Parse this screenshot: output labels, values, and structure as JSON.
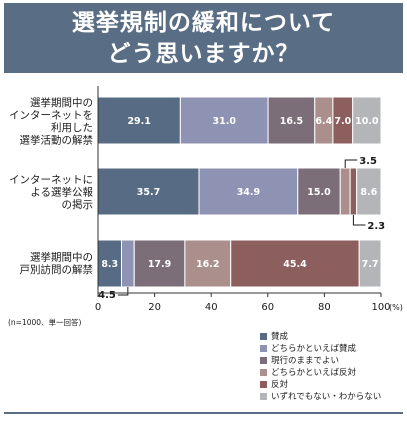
{
  "title_lines": [
    "選挙規制の緩和について",
    "どう思いますか？"
  ],
  "note": "(n=1000、単一回答)",
  "chart_data": {
    "type": "bar",
    "orientation": "horizontal",
    "stacked": true,
    "categories": [
      [
        "選挙期間中の",
        "インターネットを",
        "利用した",
        "選挙活動の解禁"
      ],
      [
        "インターネットに",
        "よる選挙公報",
        "の掲示"
      ],
      [
        "選挙期間中の",
        "戸別訪問の解禁"
      ]
    ],
    "series": [
      {
        "name": "賛成",
        "color": "#576b84",
        "values": [
          29.1,
          35.7,
          8.3
        ]
      },
      {
        "name": "どちらかといえば賛成",
        "color": "#8f93b3",
        "values": [
          31.0,
          34.9,
          4.5
        ]
      },
      {
        "name": "現行のままでよい",
        "color": "#7b6e78",
        "values": [
          16.5,
          15.0,
          17.9
        ]
      },
      {
        "name": "どちらかといえば反対",
        "color": "#ab8f8c",
        "values": [
          6.4,
          3.5,
          16.2
        ]
      },
      {
        "name": "反対",
        "color": "#8c5f5e",
        "values": [
          7.0,
          2.3,
          45.4
        ]
      },
      {
        "name": "いずれでもない・わからない",
        "color": "#b3b5b8",
        "values": [
          10.0,
          8.6,
          7.7
        ]
      }
    ],
    "xlim": [
      0,
      100
    ],
    "xticks": [
      "0",
      "20",
      "40",
      "60",
      "80",
      "100"
    ],
    "x_unit": "(%)",
    "legend_position": "bottom-right",
    "grid": false
  },
  "colors": {
    "title_band": "#596e84",
    "axis": "#333333"
  }
}
